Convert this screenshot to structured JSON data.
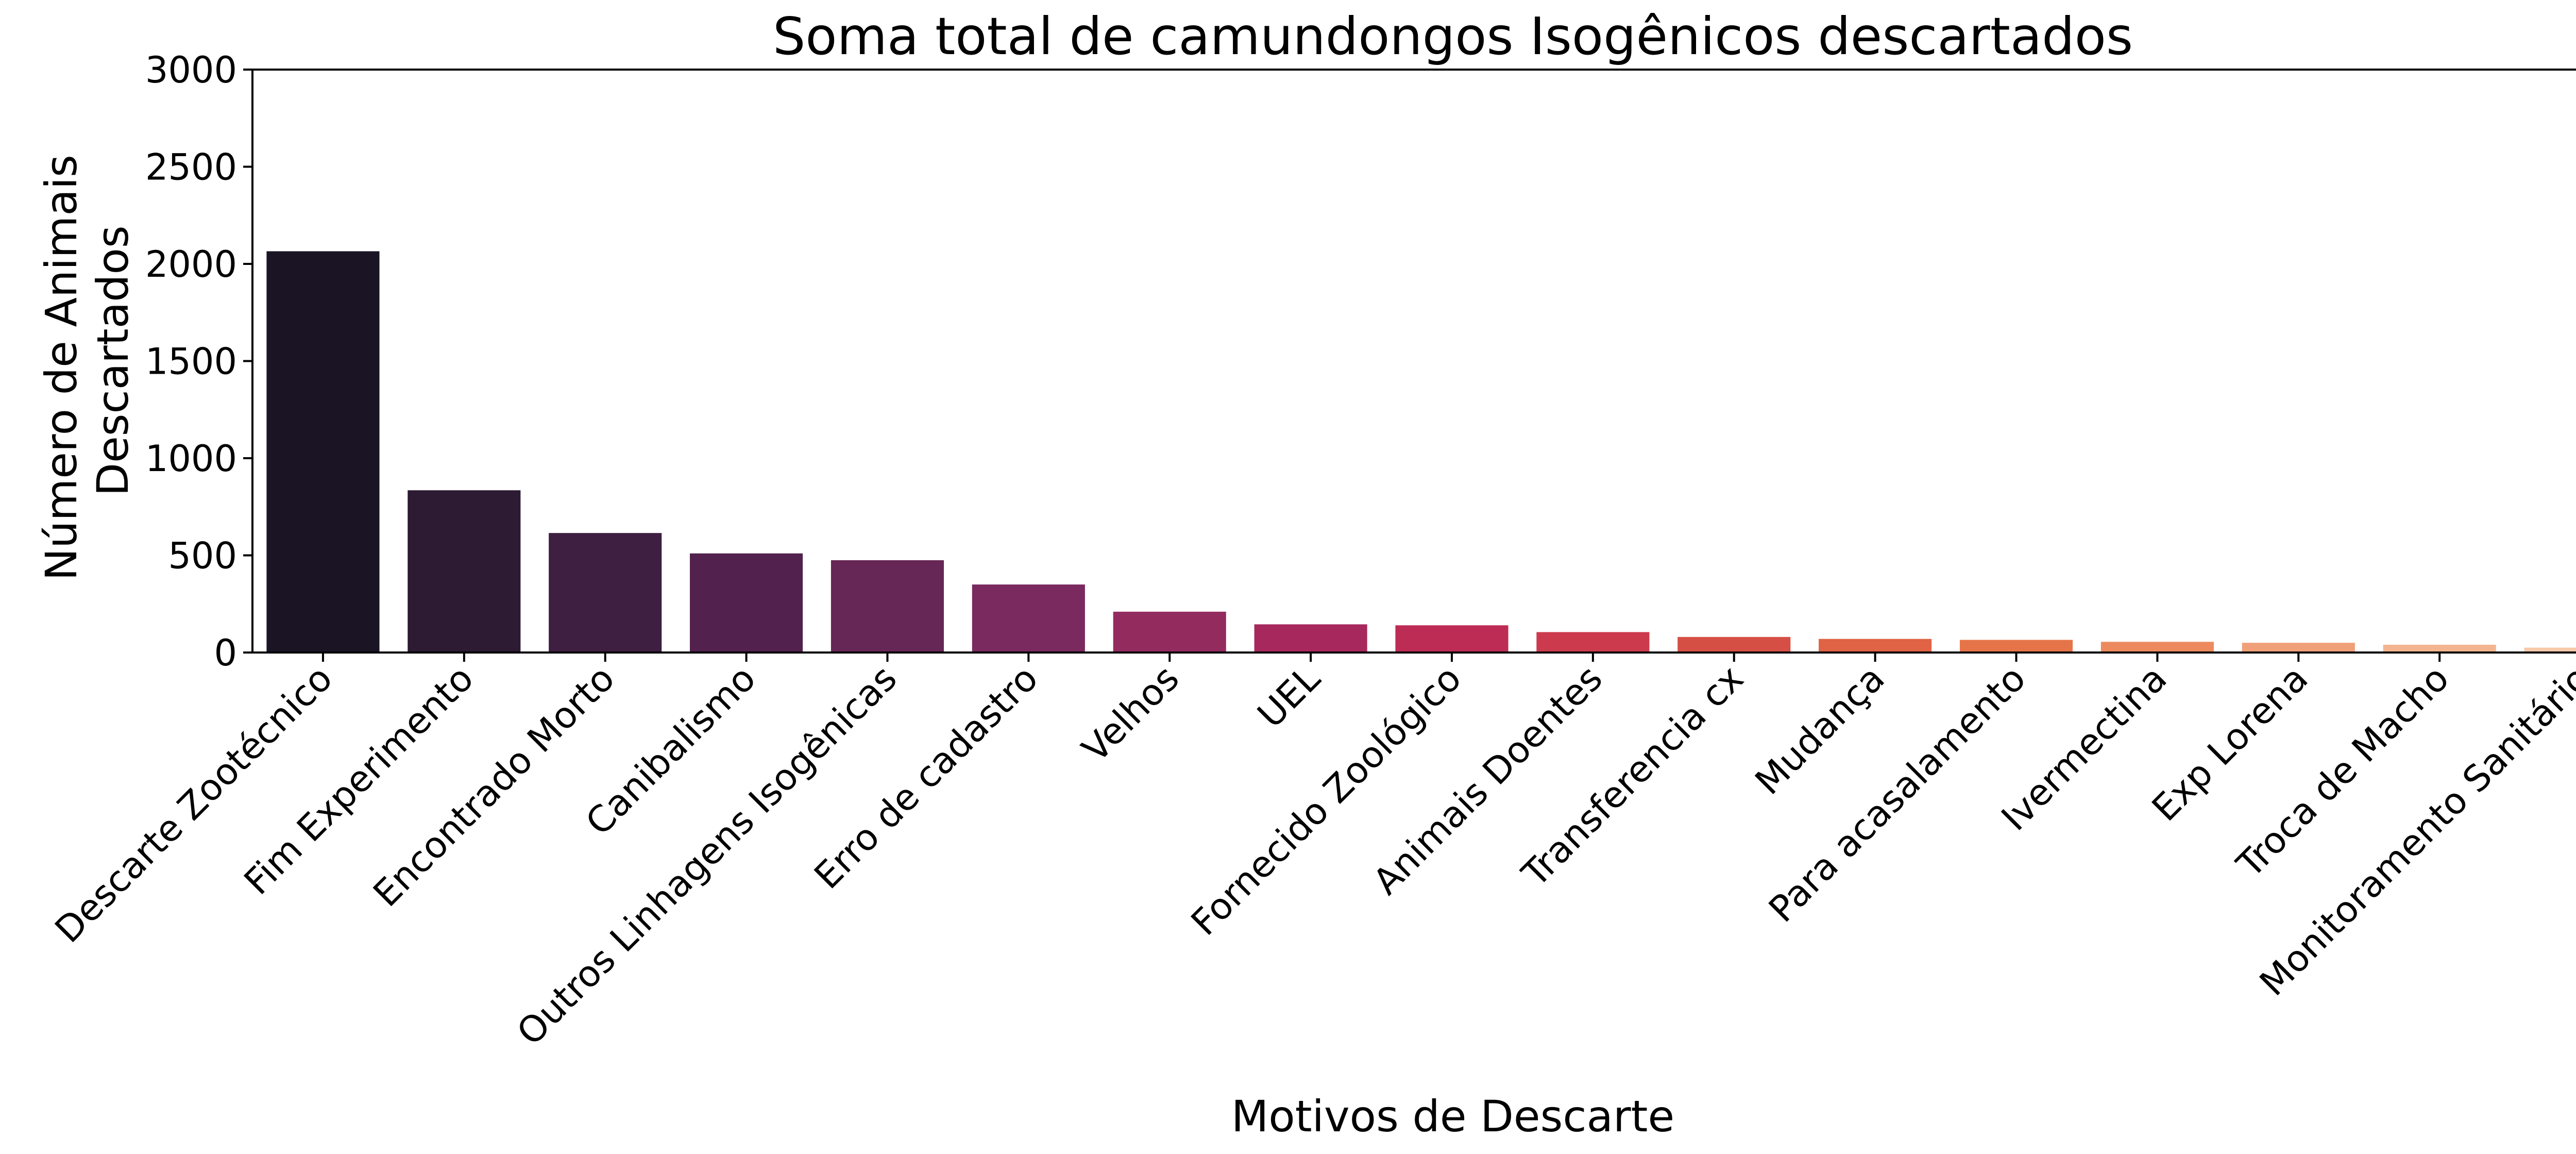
{
  "chart_data": {
    "type": "bar",
    "title": "Soma total de camundongos Isogênicos descartados",
    "xlabel": "Motivos de Descarte",
    "ylabel_lines": [
      "Número de Animais",
      "Descartados"
    ],
    "ylim": [
      0,
      3000
    ],
    "yticks": [
      "0",
      "500",
      "1000",
      "1500",
      "2000",
      "2500",
      "3000"
    ],
    "grid": false,
    "categories": [
      "Descarte Zootécnico",
      "Fim Experimento",
      "Encontrado Morto",
      "Canibalismo",
      "Outros Linhagens Isogênicas",
      "Erro de cadastro",
      "Velhos",
      "UEL",
      "Fornecido Zoológico",
      "Animais Doentes",
      "Transferencia cx",
      "Mudança",
      "Para acasalamento",
      "Ivermectina",
      "Exp Lorena",
      "Troca de Macho",
      "Monitoramento Sanitário"
    ],
    "values": [
      2065,
      835,
      615,
      510,
      475,
      350,
      210,
      145,
      140,
      105,
      80,
      70,
      65,
      55,
      50,
      40,
      25
    ],
    "colors": [
      "#1a1425",
      "#2c1b33",
      "#3e1f41",
      "#52214d",
      "#662656",
      "#7a2a5e",
      "#932b5f",
      "#a7285c",
      "#bd2c55",
      "#cc3a4d",
      "#d64f45",
      "#df6344",
      "#e67449",
      "#ec8a5e",
      "#f0a078",
      "#f3b48f",
      "#f6c9a8"
    ]
  }
}
